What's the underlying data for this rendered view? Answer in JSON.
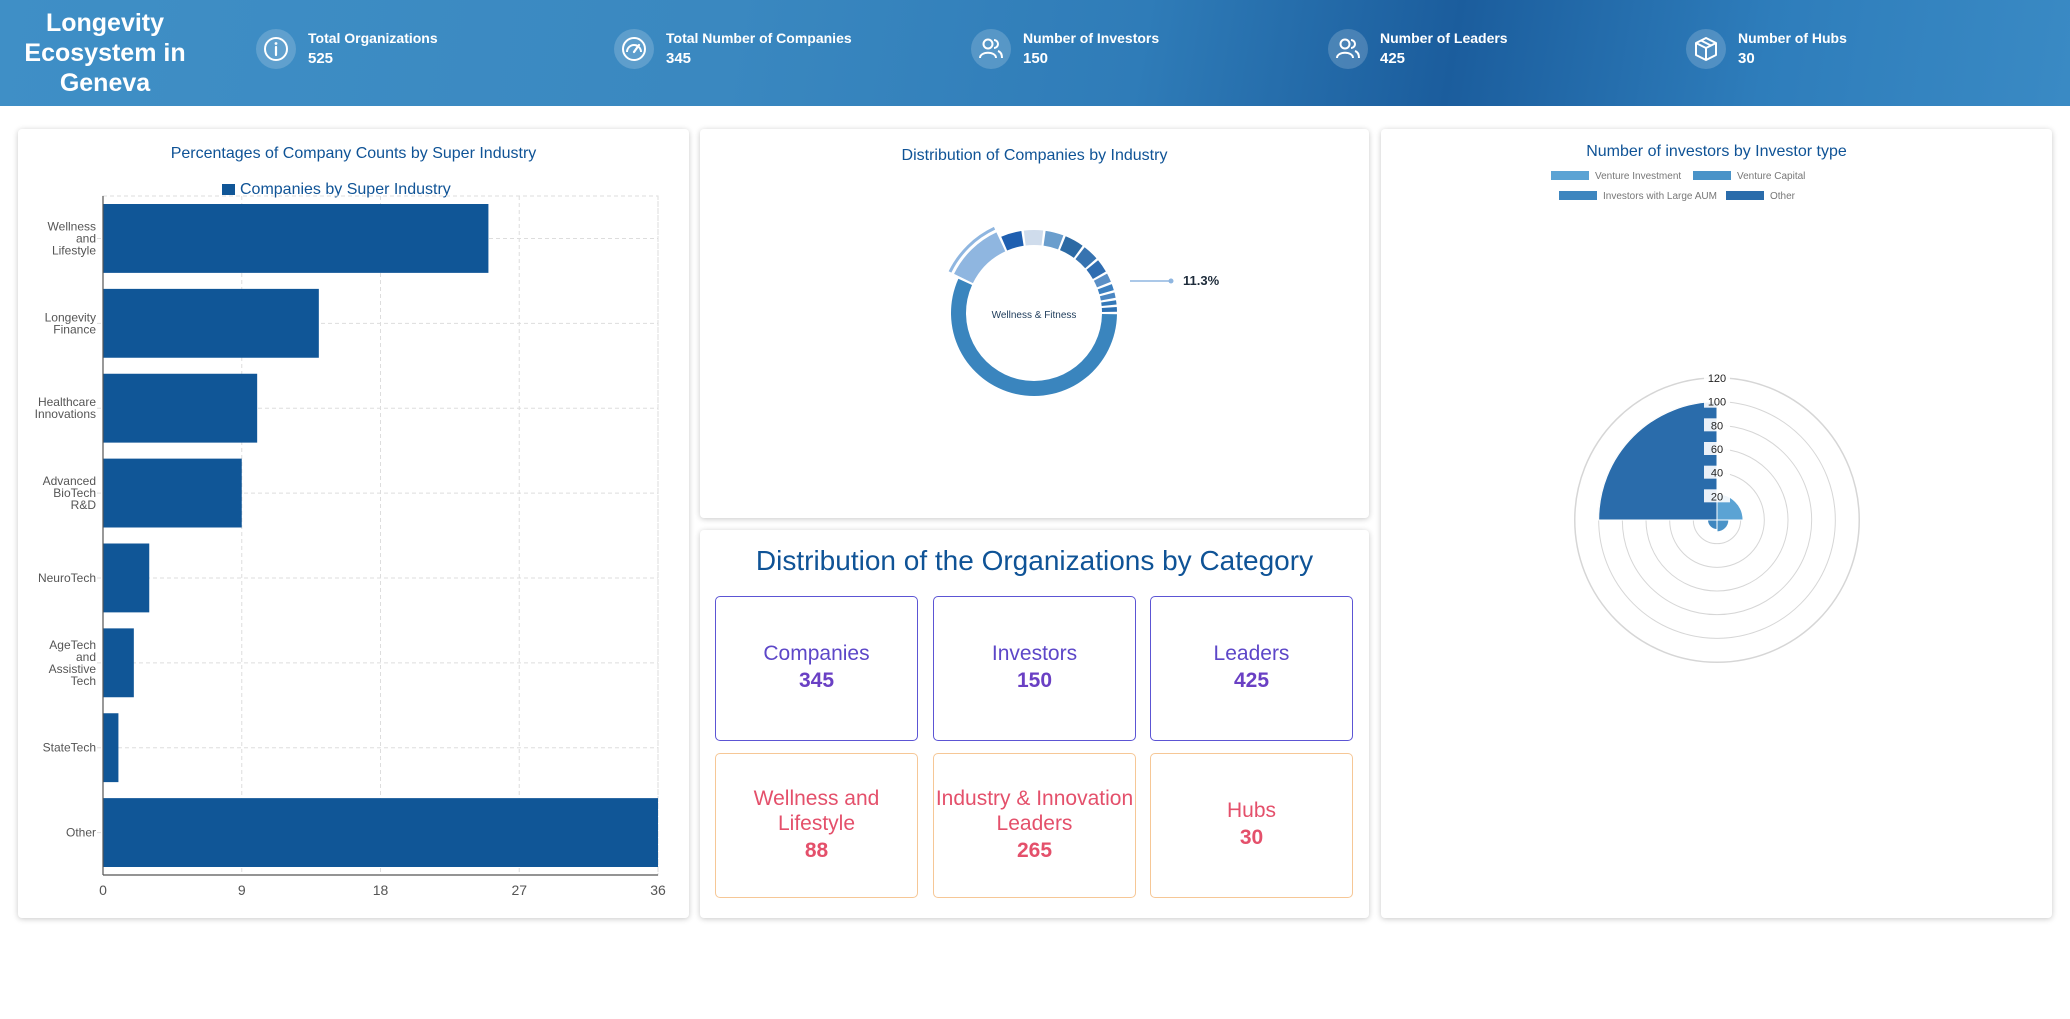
{
  "header": {
    "title": "Longevity Ecosystem in Geneva",
    "stats": [
      {
        "label": "Total Organizations",
        "value": "525",
        "icon": "info-icon"
      },
      {
        "label": "Total Number of Companies",
        "value": "345",
        "icon": "gauge-icon"
      },
      {
        "label": "Number of Investors",
        "value": "150",
        "icon": "users-icon"
      },
      {
        "label": "Number of Leaders",
        "value": "425",
        "icon": "users-icon"
      },
      {
        "label": "Number of Hubs",
        "value": "30",
        "icon": "cube-icon"
      }
    ]
  },
  "bar_panel": {
    "title": "Percentages of Company Counts by Super Industry",
    "legend": "Companies by Super Industry"
  },
  "donut_panel": {
    "title": "Distribution of Companies by Industry",
    "center_label": "Wellness & Fitness",
    "callout": "11.3%"
  },
  "polar_panel": {
    "title": "Number of investors by Investor type",
    "legend": [
      "Venture Investment",
      "Venture Capital",
      "Investors with Large AUM",
      "Other"
    ]
  },
  "category_panel": {
    "title": "Distribution of the Organizations by Category",
    "boxes": [
      {
        "label": "Companies",
        "value": "345",
        "kind": "blue"
      },
      {
        "label": "Investors",
        "value": "150",
        "kind": "blue"
      },
      {
        "label": "Leaders",
        "value": "425",
        "kind": "blue"
      },
      {
        "label": "Wellness and Lifestyle",
        "value": "88",
        "kind": "orange"
      },
      {
        "label": "Industry & Innovation Leaders",
        "value": "265",
        "kind": "orange"
      },
      {
        "label": "Hubs",
        "value": "30",
        "kind": "orange"
      }
    ]
  },
  "colors": {
    "primary": "#0f5396",
    "bar": "#105697",
    "donut": "#3a85be",
    "purple": "#5d47c8",
    "pink": "#e4506b"
  },
  "chart_data": [
    {
      "type": "bar",
      "orientation": "horizontal",
      "title": "Percentages of Company Counts by Super Industry",
      "categories": [
        "Wellness and Lifestyle",
        "Longevity Finance",
        "Healthcare Innovations",
        "Advanced BioTech R&D",
        "NeuroTech",
        "AgeTech and Assistive Tech",
        "StateTech",
        "Other"
      ],
      "tick_labels": [
        [
          "Wellness",
          "and",
          "Lifestyle"
        ],
        [
          "Longevity",
          "Finance"
        ],
        [
          "Healthcare",
          "Innovations"
        ],
        [
          "Advanced",
          "BioTech",
          "R&D"
        ],
        [
          "NeuroTech"
        ],
        [
          "AgeTech",
          "and",
          "Assistive",
          "Tech"
        ],
        [
          "StateTech"
        ],
        [
          "Other"
        ]
      ],
      "series": [
        {
          "name": "Companies by Super Industry",
          "values": [
            25,
            14,
            10,
            9,
            3,
            2,
            1,
            36
          ]
        }
      ],
      "xlim": [
        0,
        36
      ],
      "xticks": [
        "0",
        "9",
        "18",
        "27",
        "36"
      ],
      "grid": true,
      "legend": "top"
    },
    {
      "type": "pie",
      "title": "Distribution of Companies by Industry",
      "center_label": "Wellness & Fitness",
      "highlight_label": "11.3%",
      "values": [
        57,
        11.3,
        4.5,
        4.2,
        4,
        4.2,
        3.6,
        3.1,
        2.2,
        1.7,
        1.5,
        1.3,
        1.4
      ]
    },
    {
      "type": "polar-area",
      "title": "Number of investors by Investor type",
      "categories": [
        "Venture Investment",
        "Venture Capital",
        "Investors with Large AUM",
        "Other"
      ],
      "values": [
        22,
        10,
        8,
        100
      ],
      "rlim": [
        0,
        120
      ],
      "rticks": [
        "20",
        "40",
        "60",
        "80",
        "100",
        "120"
      ]
    }
  ]
}
